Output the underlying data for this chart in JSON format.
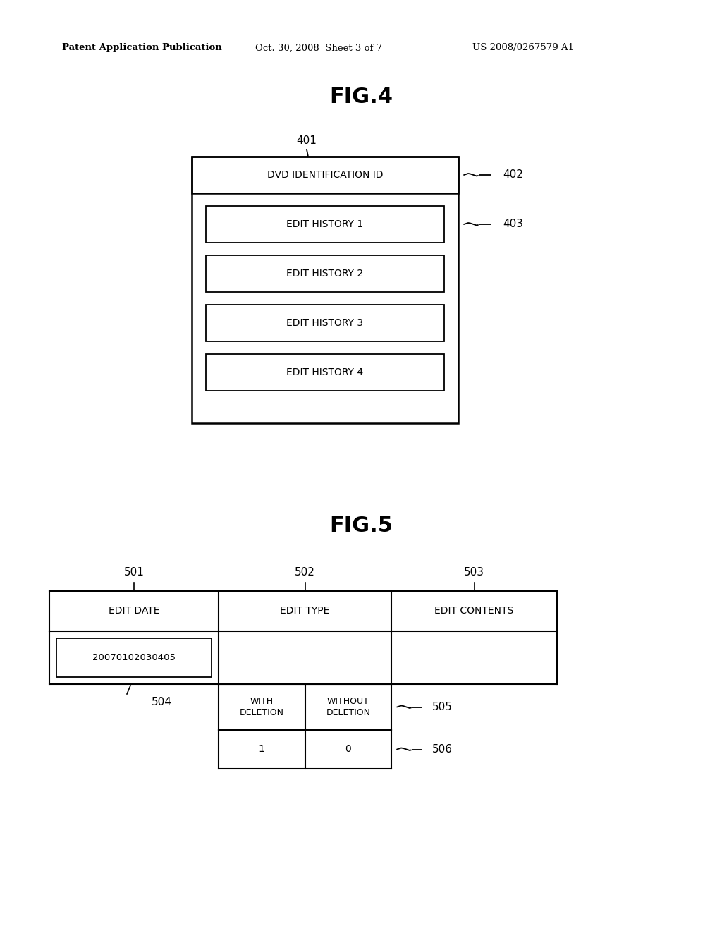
{
  "bg_color": "#ffffff",
  "header_text": "Patent Application Publication",
  "header_date": "Oct. 30, 2008  Sheet 3 of 7",
  "header_patent": "US 2008/0267579 A1",
  "fig4_title": "FIG.4",
  "fig5_title": "FIG.5",
  "fig4_label": "401",
  "fig4_dvd_label": "402",
  "fig4_hist_label": "403",
  "fig4_dvd_text": "DVD IDENTIFICATION ID",
  "fig4_histories": [
    "EDIT HISTORY 1",
    "EDIT HISTORY 2",
    "EDIT HISTORY 3",
    "EDIT HISTORY 4"
  ],
  "fig5_col_labels": [
    "501",
    "502",
    "503"
  ],
  "fig5_col_headers": [
    "EDIT DATE",
    "EDIT TYPE",
    "EDIT CONTENTS"
  ],
  "fig5_date_value": "20070102030405",
  "fig5_date_label": "504",
  "fig5_type_sub_labels": [
    "WITH\nDELETION",
    "WITHOUT\nDELETION"
  ],
  "fig5_type_values": [
    "1",
    "0"
  ],
  "fig5_row_label": "505",
  "fig5_val_label": "506",
  "line_color": "#000000",
  "text_color": "#000000",
  "font_size_header": 9.5,
  "font_size_title": 22,
  "font_size_label": 11,
  "font_size_cell": 10
}
